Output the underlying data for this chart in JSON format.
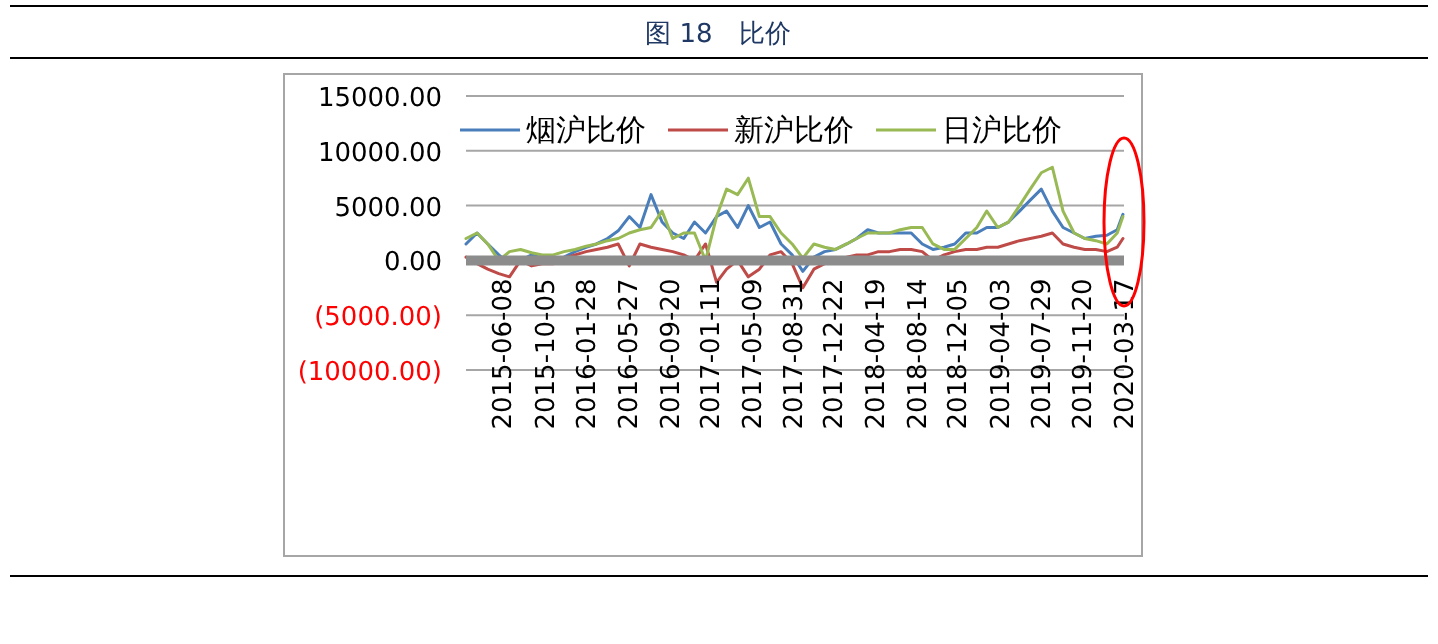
{
  "chart_data": {
    "type": "line",
    "title": "图 18　比价",
    "x": [
      "2015-03",
      "2015-04",
      "2015-05",
      "2015-06",
      "2015-07",
      "2015-08",
      "2015-09",
      "2015-10",
      "2015-11",
      "2015-12",
      "2016-01",
      "2016-02",
      "2016-03",
      "2016-04",
      "2016-05",
      "2016-06",
      "2016-07",
      "2016-08",
      "2016-09",
      "2016-10",
      "2016-11",
      "2016-12",
      "2017-01",
      "2017-02",
      "2017-03",
      "2017-04",
      "2017-05",
      "2017-06",
      "2017-07",
      "2017-08",
      "2017-09",
      "2017-10",
      "2017-11",
      "2017-12",
      "2018-01",
      "2018-02",
      "2018-03",
      "2018-04",
      "2018-05",
      "2018-06",
      "2018-07",
      "2018-08",
      "2018-09",
      "2018-10",
      "2018-11",
      "2018-12",
      "2019-01",
      "2019-02",
      "2019-03",
      "2019-04",
      "2019-05",
      "2019-06",
      "2019-07",
      "2019-08",
      "2019-09",
      "2019-10",
      "2019-11",
      "2019-12",
      "2020-01",
      "2020-02",
      "2020-03",
      "2020-03-17"
    ],
    "series": [
      {
        "name": "烟沪比价",
        "color": "#4a7ebb",
        "values": [
          1500,
          2500,
          1500,
          500,
          -300,
          0,
          500,
          200,
          0,
          300,
          800,
          1200,
          1500,
          2000,
          2700,
          4000,
          3000,
          6000,
          3500,
          2500,
          2000,
          3500,
          2500,
          4000,
          4500,
          3000,
          5000,
          3000,
          3500,
          1500,
          500,
          -1000,
          300,
          800,
          1000,
          1500,
          2000,
          2800,
          2500,
          2500,
          2500,
          2500,
          1500,
          1000,
          1200,
          1500,
          2500,
          2500,
          3000,
          3000,
          3500,
          4500,
          5500,
          6500,
          4500,
          3000,
          2500,
          2000,
          2200,
          2300,
          2800,
          4200
        ]
      },
      {
        "name": "新沪比价",
        "color": "#be4b48",
        "values": [
          300,
          -300,
          -800,
          -1200,
          -1500,
          0,
          -500,
          -300,
          -300,
          200,
          500,
          800,
          1000,
          1200,
          1500,
          -500,
          1500,
          1200,
          1000,
          800,
          500,
          0,
          1500,
          -2000,
          -800,
          0,
          -1500,
          -800,
          500,
          800,
          -300,
          -2500,
          -800,
          -300,
          0,
          300,
          500,
          500,
          800,
          800,
          1000,
          1000,
          800,
          0,
          500,
          800,
          1000,
          1000,
          1200,
          1200,
          1500,
          1800,
          2000,
          2200,
          2500,
          1500,
          1200,
          1000,
          1000,
          800,
          1200,
          2000
        ]
      },
      {
        "name": "日沪比价",
        "color": "#98b954",
        "values": [
          2000,
          2500,
          1500,
          0,
          800,
          1000,
          700,
          500,
          500,
          800,
          1000,
          1300,
          1500,
          1800,
          2000,
          2500,
          2800,
          3000,
          4500,
          2000,
          2500,
          2500,
          0,
          4000,
          6500,
          6000,
          7500,
          4000,
          4000,
          2500,
          1500,
          200,
          1500,
          1200,
          1000,
          1500,
          2000,
          2500,
          2500,
          2500,
          2800,
          3000,
          3000,
          1500,
          1000,
          1000,
          2000,
          3000,
          4500,
          3000,
          3500,
          5000,
          6500,
          8000,
          8500,
          4500,
          2500,
          2000,
          1800,
          1500,
          2500,
          4000
        ]
      }
    ],
    "xlim": [
      "2015-03-01",
      "2020-03-20"
    ],
    "xticks": [
      "2015-06-08",
      "2015-10-05",
      "2016-01-28",
      "2016-05-27",
      "2016-09-20",
      "2017-01-11",
      "2017-05-09",
      "2017-08-31",
      "2017-12-22",
      "2018-04-19",
      "2018-08-14",
      "2018-12-05",
      "2019-04-03",
      "2019-07-29",
      "2019-11-20",
      "2020-03-17"
    ],
    "ylim": [
      -10000,
      15000
    ],
    "yticks": [
      {
        "value": -10000,
        "label": "(10000.00)"
      },
      {
        "value": -5000,
        "label": "(5000.00)"
      },
      {
        "value": 0,
        "label": "0.00"
      },
      {
        "value": 5000,
        "label": "5000.00"
      },
      {
        "value": 10000,
        "label": "10000.00"
      },
      {
        "value": 15000,
        "label": "15000.00"
      }
    ],
    "ref_lines": [
      {
        "axis": "y",
        "value": 0,
        "color": "#8c8c8c"
      }
    ],
    "grid": "y",
    "legend": "top",
    "line_style": "solid",
    "marker": "none"
  }
}
